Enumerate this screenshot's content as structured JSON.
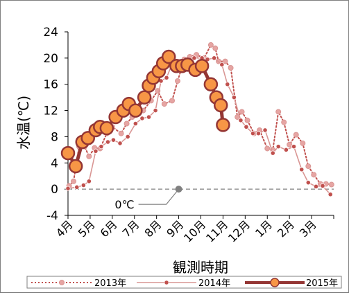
{
  "chart_data": {
    "type": "line",
    "xlabel": "観測時期",
    "ylabel": "水温(℃)",
    "categories": [
      "4月",
      "5月",
      "6月",
      "7月",
      "8月",
      "9月",
      "10月",
      "11月",
      "12月",
      "1月",
      "2月",
      "3月"
    ],
    "x_unit": "month index (0 = start of 4月, 12 = end of 3月)",
    "ylim": [
      -4,
      24
    ],
    "yticks": [
      -4,
      0,
      4,
      8,
      12,
      16,
      20,
      24
    ],
    "grid": false,
    "legend_position": "bottom",
    "reference_line": {
      "y": 0,
      "label": "0℃"
    },
    "series": [
      {
        "name": "2013年",
        "style": "dotted",
        "color": "#c0504d",
        "marker_color": "#e6a5a3",
        "points": [
          [
            0.05,
            0.5
          ],
          [
            0.25,
            1.2
          ],
          [
            0.5,
            6.5
          ],
          [
            0.75,
            6.5
          ],
          [
            0.95,
            5.0
          ],
          [
            1.2,
            6.3
          ],
          [
            1.45,
            6.2
          ],
          [
            1.75,
            8.5
          ],
          [
            2.0,
            9.5
          ],
          [
            2.4,
            8.5
          ],
          [
            2.65,
            10.0
          ],
          [
            2.9,
            11.0
          ],
          [
            3.15,
            11.8
          ],
          [
            3.4,
            12.0
          ],
          [
            3.75,
            13.5
          ],
          [
            4.05,
            15.0
          ],
          [
            4.35,
            13.0
          ],
          [
            4.7,
            13.5
          ],
          [
            4.95,
            16.5
          ],
          [
            5.25,
            19.8
          ],
          [
            5.5,
            20.2
          ],
          [
            5.8,
            20.5
          ],
          [
            6.15,
            20.0
          ],
          [
            6.45,
            22.0
          ],
          [
            6.65,
            21.5
          ],
          [
            6.8,
            19.5
          ],
          [
            7.1,
            19.5
          ],
          [
            7.35,
            18.5
          ],
          [
            7.65,
            11.0
          ],
          [
            7.85,
            11.8
          ],
          [
            8.1,
            10.5
          ],
          [
            8.4,
            8.5
          ],
          [
            8.65,
            9.0
          ],
          [
            9.0,
            6.2
          ],
          [
            9.25,
            6.0
          ],
          [
            9.5,
            11.8
          ],
          [
            9.75,
            10.2
          ],
          [
            10.0,
            6.8
          ],
          [
            10.3,
            8.3
          ],
          [
            10.6,
            7.0
          ],
          [
            10.85,
            3.5
          ],
          [
            11.1,
            2.2
          ],
          [
            11.4,
            0.8
          ],
          [
            11.65,
            0.8
          ],
          [
            11.9,
            0.7
          ]
        ]
      },
      {
        "name": "2014年",
        "style": "solid",
        "color": "#d99694",
        "marker_color": "#c0504d",
        "points": [
          [
            0.0,
            0.1
          ],
          [
            0.4,
            0.3
          ],
          [
            0.7,
            0.6
          ],
          [
            0.95,
            1.2
          ],
          [
            1.25,
            5.8
          ],
          [
            1.5,
            6.5
          ],
          [
            1.8,
            7.2
          ],
          [
            2.05,
            7.5
          ],
          [
            2.35,
            7.0
          ],
          [
            2.7,
            8.0
          ],
          [
            3.05,
            10.0
          ],
          [
            3.35,
            10.8
          ],
          [
            3.65,
            11.0
          ],
          [
            3.95,
            12.0
          ],
          [
            4.2,
            16.5
          ],
          [
            4.45,
            17.0
          ],
          [
            4.75,
            19.5
          ],
          [
            5.05,
            19.5
          ],
          [
            5.4,
            19.2
          ],
          [
            5.7,
            20.0
          ],
          [
            6.05,
            20.0
          ],
          [
            6.3,
            19.8
          ],
          [
            6.6,
            20.0
          ],
          [
            6.95,
            19.0
          ],
          [
            7.2,
            16.0
          ],
          [
            7.5,
            14.0
          ],
          [
            7.8,
            10.5
          ],
          [
            8.05,
            9.5
          ],
          [
            8.35,
            8.5
          ],
          [
            8.6,
            8.5
          ],
          [
            8.9,
            9.0
          ],
          [
            9.25,
            5.5
          ],
          [
            9.5,
            6.5
          ],
          [
            9.85,
            6.0
          ],
          [
            10.2,
            6.5
          ],
          [
            10.55,
            3.0
          ],
          [
            10.85,
            1.0
          ],
          [
            11.2,
            0.4
          ],
          [
            11.5,
            0.5
          ],
          [
            11.85,
            -0.8
          ]
        ]
      },
      {
        "name": "2015年",
        "style": "bold",
        "color": "#943634",
        "marker_color": "#f79646",
        "points": [
          [
            0.0,
            5.5
          ],
          [
            0.35,
            3.5
          ],
          [
            0.65,
            7.2
          ],
          [
            0.9,
            7.8
          ],
          [
            1.25,
            9.0
          ],
          [
            1.45,
            9.5
          ],
          [
            1.75,
            9.3
          ],
          [
            2.15,
            11.0
          ],
          [
            2.5,
            12.0
          ],
          [
            2.75,
            13.0
          ],
          [
            3.05,
            12.0
          ],
          [
            3.45,
            14.0
          ],
          [
            3.65,
            15.8
          ],
          [
            3.85,
            17.0
          ],
          [
            4.1,
            18.0
          ],
          [
            4.3,
            19.2
          ],
          [
            4.55,
            20.2
          ],
          [
            4.9,
            18.8
          ],
          [
            5.15,
            18.8
          ],
          [
            5.4,
            19.0
          ],
          [
            5.75,
            18.2
          ],
          [
            6.05,
            18.8
          ],
          [
            6.45,
            16.0
          ],
          [
            6.7,
            14.0
          ],
          [
            6.9,
            12.8
          ],
          [
            7.0,
            9.8
          ]
        ]
      }
    ]
  }
}
